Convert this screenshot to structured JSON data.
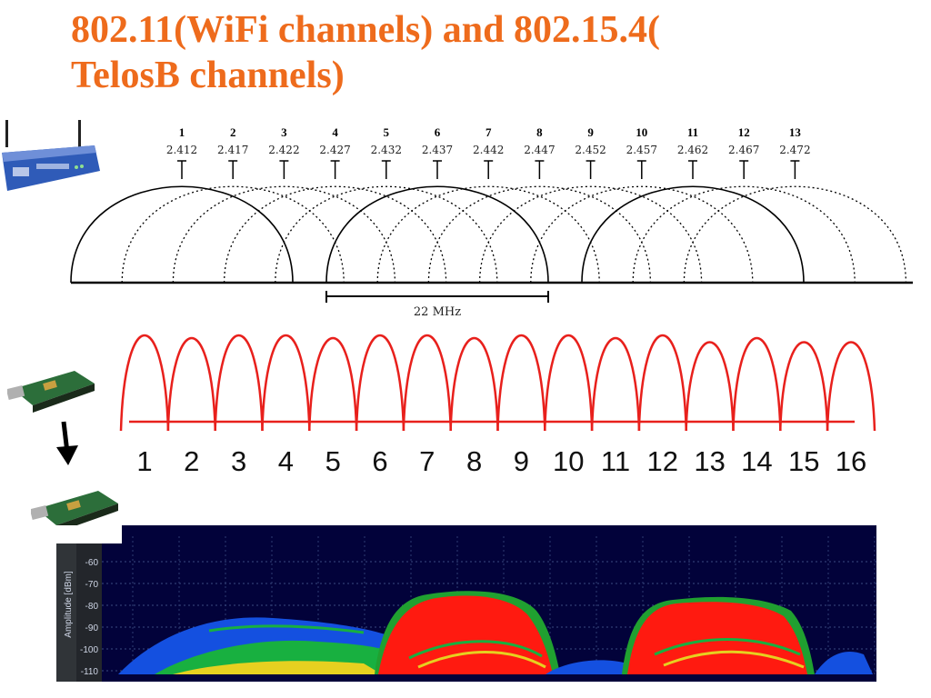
{
  "title": {
    "line1": "802.11(WiFi channels) and 802.15.4(",
    "line2": "TelosB channels)"
  },
  "wifi": {
    "channels": [
      {
        "num": "1",
        "freq": "2.412"
      },
      {
        "num": "2",
        "freq": "2.417"
      },
      {
        "num": "3",
        "freq": "2.422"
      },
      {
        "num": "4",
        "freq": "2.427"
      },
      {
        "num": "5",
        "freq": "2.432"
      },
      {
        "num": "6",
        "freq": "2.437"
      },
      {
        "num": "7",
        "freq": "2.442"
      },
      {
        "num": "8",
        "freq": "2.447"
      },
      {
        "num": "9",
        "freq": "2.452"
      },
      {
        "num": "10",
        "freq": "2.457"
      },
      {
        "num": "11",
        "freq": "2.462"
      },
      {
        "num": "12",
        "freq": "2.467"
      },
      {
        "num": "13",
        "freq": "2.472"
      }
    ],
    "non_overlapping": [
      "1",
      "6",
      "11"
    ],
    "bandwidth_label": "22 MHz"
  },
  "zigbee": {
    "channels": [
      "1",
      "2",
      "3",
      "4",
      "5",
      "6",
      "7",
      "8",
      "9",
      "10",
      "11",
      "12",
      "13",
      "14",
      "15",
      "16"
    ],
    "color": "#e8201c"
  },
  "spectrum": {
    "ylabel": "Amplitude [dBm]",
    "yticks": [
      "-60",
      "-70",
      "-80",
      "-90",
      "-100",
      "-110"
    ]
  },
  "icons": {
    "router": "wifi-router-icon",
    "mote": "telosb-mote-icon",
    "arrow": "arrow-down-icon"
  },
  "colors": {
    "title": "#ee6b1c",
    "spectrum_bg": "#02023a",
    "spectrum_hot": "#ff1a10"
  }
}
